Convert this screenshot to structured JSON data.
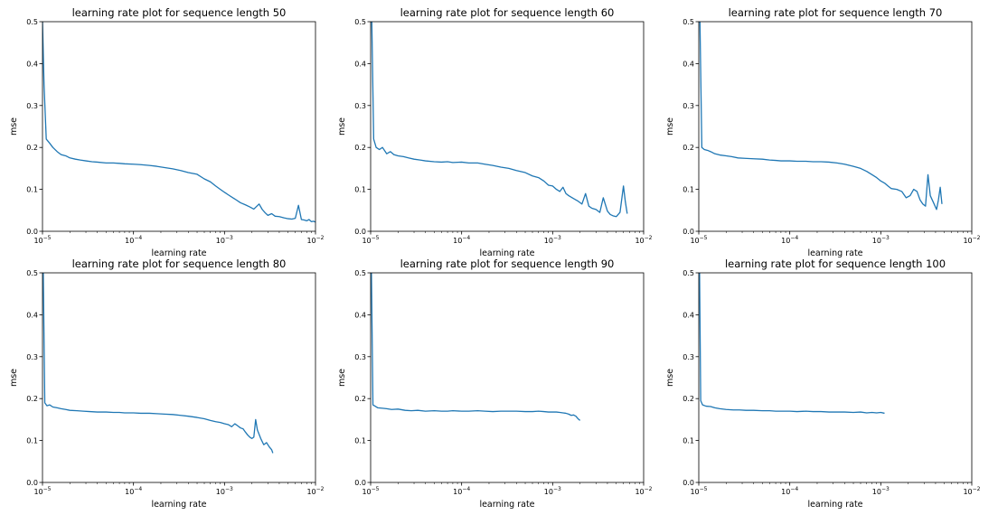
{
  "chart_data": [
    {
      "type": "line",
      "title": "learning rate plot for sequence length 50",
      "xlabel": "learning rate",
      "ylabel": "mse",
      "xscale": "log",
      "xlim": [
        1e-05,
        0.01
      ],
      "ylim": [
        0.0,
        0.5
      ],
      "xticks": [
        {
          "base": "10",
          "exp": "−5"
        },
        {
          "base": "10",
          "exp": "−4"
        },
        {
          "base": "10",
          "exp": "−3"
        },
        {
          "base": "10",
          "exp": "−2"
        }
      ],
      "yticks": [
        "0.0",
        "0.1",
        "0.2",
        "0.3",
        "0.4",
        "0.5"
      ],
      "grid": false,
      "series": [
        {
          "color": "#1f77b4",
          "x": [
            1e-05,
            1.04e-05,
            1.1e-05,
            1.2e-05,
            1.3e-05,
            1.45e-05,
            1.6e-05,
            1.8e-05,
            2e-05,
            2.3e-05,
            2.6e-05,
            3e-05,
            3.5e-05,
            4e-05,
            5e-05,
            6e-05,
            7e-05,
            8e-05,
            0.0001,
            0.00012,
            0.00015,
            0.00018,
            0.00022,
            0.00027,
            0.00033,
            0.0004,
            0.0005,
            0.0006,
            0.0007,
            0.0008,
            0.0009,
            0.001,
            0.0011,
            0.0013,
            0.0015,
            0.0017,
            0.0019,
            0.0021,
            0.0024,
            0.0026,
            0.0028,
            0.003,
            0.0033,
            0.0036,
            0.004,
            0.0045,
            0.005,
            0.0055,
            0.006,
            0.0065,
            0.007,
            0.0075,
            0.008,
            0.0085,
            0.009,
            0.0095,
            0.01
          ],
          "y": [
            0.5,
            0.35,
            0.22,
            0.21,
            0.2,
            0.19,
            0.183,
            0.18,
            0.175,
            0.172,
            0.17,
            0.168,
            0.166,
            0.165,
            0.163,
            0.163,
            0.162,
            0.161,
            0.16,
            0.159,
            0.157,
            0.155,
            0.152,
            0.149,
            0.145,
            0.14,
            0.136,
            0.125,
            0.118,
            0.108,
            0.1,
            0.093,
            0.087,
            0.077,
            0.068,
            0.063,
            0.058,
            0.053,
            0.065,
            0.052,
            0.044,
            0.038,
            0.042,
            0.036,
            0.035,
            0.032,
            0.03,
            0.029,
            0.031,
            0.062,
            0.028,
            0.027,
            0.025,
            0.028,
            0.023,
            0.024,
            0.022
          ]
        }
      ]
    },
    {
      "type": "line",
      "title": "learning rate plot for sequence length 60",
      "xlabel": "learning rate",
      "ylabel": "mse",
      "xscale": "log",
      "xlim": [
        1e-05,
        0.01
      ],
      "ylim": [
        0.0,
        0.5
      ],
      "xticks": [
        {
          "base": "10",
          "exp": "−5"
        },
        {
          "base": "10",
          "exp": "−4"
        },
        {
          "base": "10",
          "exp": "−3"
        },
        {
          "base": "10",
          "exp": "−2"
        }
      ],
      "yticks": [
        "0.0",
        "0.1",
        "0.2",
        "0.3",
        "0.4",
        "0.5"
      ],
      "grid": false,
      "series": [
        {
          "color": "#1f77b4",
          "x": [
            1e-05,
            1.03e-05,
            1.08e-05,
            1.15e-05,
            1.25e-05,
            1.35e-05,
            1.5e-05,
            1.65e-05,
            1.8e-05,
            2e-05,
            2.3e-05,
            2.6e-05,
            3e-05,
            3.5e-05,
            4e-05,
            5e-05,
            6e-05,
            7e-05,
            8e-05,
            0.0001,
            0.00012,
            0.00015,
            0.00018,
            0.00022,
            0.00027,
            0.00033,
            0.0004,
            0.0005,
            0.0006,
            0.0007,
            0.0008,
            0.0009,
            0.001,
            0.0011,
            0.0012,
            0.0013,
            0.0014,
            0.0015,
            0.0017,
            0.0019,
            0.0021,
            0.0023,
            0.0025,
            0.0027,
            0.003,
            0.0033,
            0.0036,
            0.004,
            0.0043,
            0.0046,
            0.005,
            0.0055,
            0.006,
            0.0063,
            0.0066
          ],
          "y": [
            0.5,
            0.5,
            0.22,
            0.2,
            0.195,
            0.2,
            0.185,
            0.19,
            0.183,
            0.18,
            0.178,
            0.175,
            0.172,
            0.17,
            0.168,
            0.166,
            0.165,
            0.166,
            0.164,
            0.165,
            0.163,
            0.163,
            0.16,
            0.157,
            0.153,
            0.15,
            0.145,
            0.14,
            0.132,
            0.128,
            0.12,
            0.11,
            0.108,
            0.1,
            0.095,
            0.105,
            0.09,
            0.085,
            0.078,
            0.072,
            0.065,
            0.09,
            0.06,
            0.055,
            0.052,
            0.045,
            0.08,
            0.048,
            0.04,
            0.037,
            0.035,
            0.045,
            0.108,
            0.07,
            0.042
          ]
        }
      ]
    },
    {
      "type": "line",
      "title": "learning rate plot for sequence length 70",
      "xlabel": "learning rate",
      "ylabel": "mse",
      "xscale": "log",
      "xlim": [
        1e-05,
        0.01
      ],
      "ylim": [
        0.0,
        0.5
      ],
      "xticks": [
        {
          "base": "10",
          "exp": "−5"
        },
        {
          "base": "10",
          "exp": "−4"
        },
        {
          "base": "10",
          "exp": "−3"
        },
        {
          "base": "10",
          "exp": "−2"
        }
      ],
      "yticks": [
        "0.0",
        "0.1",
        "0.2",
        "0.3",
        "0.4",
        "0.5"
      ],
      "grid": false,
      "series": [
        {
          "color": "#1f77b4",
          "x": [
            1e-05,
            1.03e-05,
            1.08e-05,
            1.15e-05,
            1.25e-05,
            1.35e-05,
            1.5e-05,
            1.7e-05,
            2e-05,
            2.3e-05,
            2.7e-05,
            3.2e-05,
            4e-05,
            5e-05,
            6e-05,
            7e-05,
            8e-05,
            0.0001,
            0.00012,
            0.00015,
            0.00018,
            0.00022,
            0.00027,
            0.00033,
            0.0004,
            0.0005,
            0.0006,
            0.0007,
            0.0008,
            0.0009,
            0.001,
            0.0011,
            0.0012,
            0.0013,
            0.0015,
            0.0017,
            0.0019,
            0.0021,
            0.0023,
            0.0025,
            0.0027,
            0.0029,
            0.0031,
            0.0033,
            0.0035,
            0.0038,
            0.0041,
            0.0043,
            0.0045,
            0.0047
          ],
          "y": [
            0.5,
            0.5,
            0.2,
            0.195,
            0.193,
            0.19,
            0.185,
            0.182,
            0.18,
            0.178,
            0.175,
            0.174,
            0.173,
            0.172,
            0.17,
            0.169,
            0.168,
            0.168,
            0.167,
            0.167,
            0.166,
            0.166,
            0.165,
            0.163,
            0.16,
            0.155,
            0.15,
            0.143,
            0.135,
            0.128,
            0.12,
            0.115,
            0.108,
            0.102,
            0.1,
            0.095,
            0.08,
            0.085,
            0.1,
            0.095,
            0.075,
            0.065,
            0.06,
            0.135,
            0.085,
            0.068,
            0.052,
            0.075,
            0.105,
            0.065
          ]
        }
      ]
    },
    {
      "type": "line",
      "title": "learning rate plot for sequence length 80",
      "xlabel": "learning rate",
      "ylabel": "mse",
      "xscale": "log",
      "xlim": [
        1e-05,
        0.01
      ],
      "ylim": [
        0.0,
        0.5
      ],
      "xticks": [
        {
          "base": "10",
          "exp": "−5"
        },
        {
          "base": "10",
          "exp": "−4"
        },
        {
          "base": "10",
          "exp": "−3"
        },
        {
          "base": "10",
          "exp": "−2"
        }
      ],
      "yticks": [
        "0.0",
        "0.1",
        "0.2",
        "0.3",
        "0.4",
        "0.5"
      ],
      "grid": false,
      "series": [
        {
          "color": "#1f77b4",
          "x": [
            1e-05,
            1.02e-05,
            1.06e-05,
            1.12e-05,
            1.2e-05,
            1.3e-05,
            1.45e-05,
            1.6e-05,
            1.8e-05,
            2e-05,
            2.4e-05,
            2.8e-05,
            3.3e-05,
            4e-05,
            5e-05,
            6e-05,
            7e-05,
            8e-05,
            0.0001,
            0.00012,
            0.00015,
            0.00018,
            0.00022,
            0.00027,
            0.00033,
            0.0004,
            0.0005,
            0.0006,
            0.0007,
            0.0008,
            0.0009,
            0.001,
            0.0011,
            0.0012,
            0.0013,
            0.0014,
            0.0015,
            0.0016,
            0.0017,
            0.0018,
            0.0019,
            0.002,
            0.0021,
            0.0022,
            0.0023,
            0.0025,
            0.0027,
            0.0029,
            0.0031,
            0.0033,
            0.0034
          ],
          "y": [
            0.5,
            0.5,
            0.19,
            0.183,
            0.185,
            0.18,
            0.178,
            0.176,
            0.174,
            0.172,
            0.171,
            0.17,
            0.169,
            0.168,
            0.168,
            0.167,
            0.167,
            0.166,
            0.166,
            0.165,
            0.165,
            0.164,
            0.163,
            0.162,
            0.16,
            0.158,
            0.155,
            0.152,
            0.148,
            0.145,
            0.143,
            0.14,
            0.138,
            0.133,
            0.14,
            0.135,
            0.13,
            0.128,
            0.12,
            0.113,
            0.108,
            0.105,
            0.108,
            0.15,
            0.125,
            0.105,
            0.09,
            0.095,
            0.085,
            0.078,
            0.07
          ]
        }
      ]
    },
    {
      "type": "line",
      "title": "learning rate plot for sequence length 90",
      "xlabel": "learning rate",
      "ylabel": "mse",
      "xscale": "log",
      "xlim": [
        1e-05,
        0.01
      ],
      "ylim": [
        0.0,
        0.5
      ],
      "xticks": [
        {
          "base": "10",
          "exp": "−5"
        },
        {
          "base": "10",
          "exp": "−4"
        },
        {
          "base": "10",
          "exp": "−3"
        },
        {
          "base": "10",
          "exp": "−2"
        }
      ],
      "yticks": [
        "0.0",
        "0.1",
        "0.2",
        "0.3",
        "0.4",
        "0.5"
      ],
      "grid": false,
      "series": [
        {
          "color": "#1f77b4",
          "x": [
            1e-05,
            1.02e-05,
            1.06e-05,
            1.12e-05,
            1.2e-05,
            1.35e-05,
            1.5e-05,
            1.7e-05,
            2e-05,
            2.4e-05,
            2.8e-05,
            3.3e-05,
            4e-05,
            5e-05,
            6e-05,
            7e-05,
            8e-05,
            0.0001,
            0.00012,
            0.00015,
            0.00018,
            0.00022,
            0.00027,
            0.00033,
            0.0004,
            0.0005,
            0.0006,
            0.0007,
            0.0008,
            0.0009,
            0.001,
            0.0011,
            0.0012,
            0.0013,
            0.0014,
            0.0015,
            0.0016,
            0.0017,
            0.0018,
            0.0019,
            0.002
          ],
          "y": [
            0.5,
            0.5,
            0.185,
            0.182,
            0.178,
            0.177,
            0.176,
            0.174,
            0.175,
            0.172,
            0.171,
            0.172,
            0.17,
            0.171,
            0.17,
            0.17,
            0.171,
            0.17,
            0.17,
            0.171,
            0.17,
            0.169,
            0.17,
            0.17,
            0.17,
            0.169,
            0.169,
            0.17,
            0.169,
            0.168,
            0.168,
            0.168,
            0.167,
            0.166,
            0.165,
            0.163,
            0.16,
            0.161,
            0.158,
            0.152,
            0.148
          ]
        }
      ]
    },
    {
      "type": "line",
      "title": "learning rate plot for sequence length 100",
      "xlabel": "learning rate",
      "ylabel": "mse",
      "xscale": "log",
      "xlim": [
        1e-05,
        0.01
      ],
      "ylim": [
        0.0,
        0.5
      ],
      "xticks": [
        {
          "base": "10",
          "exp": "−5"
        },
        {
          "base": "10",
          "exp": "−4"
        },
        {
          "base": "10",
          "exp": "−3"
        },
        {
          "base": "10",
          "exp": "−2"
        }
      ],
      "yticks": [
        "0.0",
        "0.1",
        "0.2",
        "0.3",
        "0.4",
        "0.5"
      ],
      "grid": false,
      "series": [
        {
          "color": "#1f77b4",
          "x": [
            1e-05,
            1.02e-05,
            1.05e-05,
            1.1e-05,
            1.2e-05,
            1.35e-05,
            1.5e-05,
            1.7e-05,
            2e-05,
            2.4e-05,
            2.8e-05,
            3.3e-05,
            4e-05,
            5e-05,
            6e-05,
            7e-05,
            8e-05,
            0.0001,
            0.00012,
            0.00015,
            0.00018,
            0.00022,
            0.00027,
            0.00033,
            0.0004,
            0.0005,
            0.0006,
            0.0007,
            0.0008,
            0.0009,
            0.001,
            0.0011
          ],
          "y": [
            0.5,
            0.5,
            0.195,
            0.185,
            0.182,
            0.181,
            0.178,
            0.176,
            0.174,
            0.173,
            0.173,
            0.172,
            0.172,
            0.171,
            0.171,
            0.17,
            0.17,
            0.17,
            0.169,
            0.17,
            0.169,
            0.169,
            0.168,
            0.168,
            0.168,
            0.167,
            0.168,
            0.166,
            0.167,
            0.166,
            0.167,
            0.165
          ]
        }
      ]
    }
  ]
}
